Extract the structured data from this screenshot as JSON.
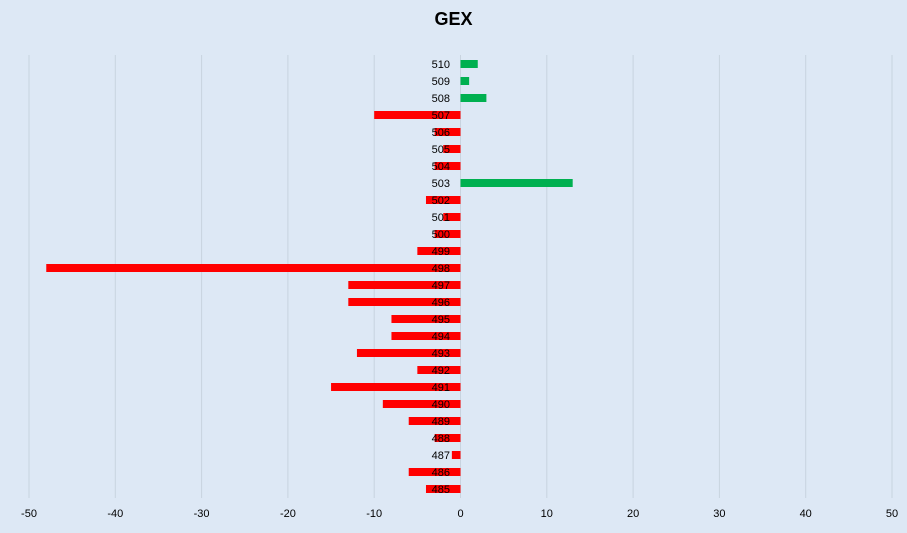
{
  "chart_data": {
    "type": "bar",
    "orientation": "horizontal",
    "title": "GEX",
    "xlabel": "",
    "ylabel": "",
    "xlim": [
      -50,
      50
    ],
    "xticks": [
      -50,
      -40,
      -30,
      -20,
      -10,
      0,
      10,
      20,
      30,
      40,
      50
    ],
    "grid": "vertical",
    "legend": "none",
    "colors": {
      "positive": "#00b050",
      "negative": "#ff0000"
    },
    "categories": [
      "510",
      "509",
      "508",
      "507",
      "506",
      "505",
      "504",
      "503",
      "502",
      "501",
      "500",
      "499",
      "498",
      "497",
      "496",
      "495",
      "494",
      "493",
      "492",
      "491",
      "490",
      "489",
      "488",
      "487",
      "486",
      "485"
    ],
    "values": [
      2,
      1,
      3,
      -10,
      -3,
      -2,
      -3,
      13,
      -4,
      -2,
      -3,
      -5,
      -48,
      -13,
      -13,
      -8,
      -8,
      -12,
      -5,
      -15,
      -9,
      -6,
      -3,
      -1,
      -6,
      -4
    ]
  }
}
